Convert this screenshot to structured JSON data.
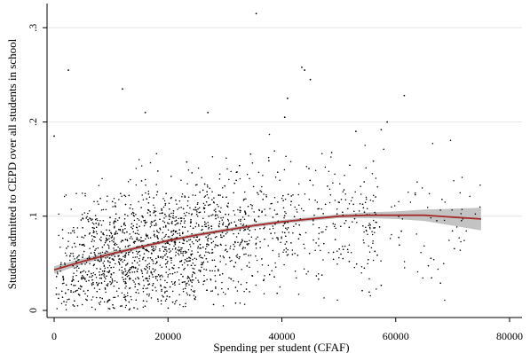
{
  "chart_data": {
    "type": "scatter",
    "title": "",
    "xlabel": "Spending per student (CFAF)",
    "ylabel": "Students admitted to CEPD over all students in school",
    "xlim": [
      0,
      80000
    ],
    "ylim": [
      0,
      0.32
    ],
    "x_ticks": [
      0,
      20000,
      40000,
      60000,
      80000
    ],
    "x_tick_labels": [
      "0",
      "20000",
      "40000",
      "60000",
      "80000"
    ],
    "y_ticks": [
      0,
      0.1,
      0.2,
      0.3
    ],
    "y_tick_labels": [
      "0",
      ".1",
      ".2",
      ".3"
    ],
    "grid": "horizontal",
    "legend": "none",
    "colors": {
      "points": "#000000",
      "fit_line": "#a52a2a",
      "confidence_band": "#b8b8b8",
      "gridline": "#e6e6e6"
    },
    "series": [
      {
        "type": "quadratic-fit",
        "x": [
          0,
          5000,
          10000,
          15000,
          20000,
          25000,
          30000,
          35000,
          40000,
          45000,
          50000,
          55000,
          60000,
          65000,
          70000,
          75000
        ],
        "y": [
          0.043,
          0.052,
          0.06,
          0.067,
          0.074,
          0.08,
          0.085,
          0.09,
          0.094,
          0.097,
          0.1,
          0.101,
          0.101,
          0.101,
          0.099,
          0.097
        ],
        "ci_half_width": [
          0.004,
          0.003,
          0.0025,
          0.002,
          0.002,
          0.002,
          0.002,
          0.002,
          0.002,
          0.002,
          0.002,
          0.003,
          0.004,
          0.006,
          0.009,
          0.012
        ]
      },
      {
        "type": "scatter",
        "x": [
          2500,
          35500,
          43500,
          44000,
          45000,
          12000,
          16000,
          27000,
          40500,
          41000,
          61500,
          0,
          58500,
          53000
        ],
        "y": [
          0.255,
          0.315,
          0.258,
          0.255,
          0.245,
          0.235,
          0.21,
          0.21,
          0.205,
          0.225,
          0.228,
          0.185,
          0.2,
          0.19
        ]
      }
    ]
  }
}
